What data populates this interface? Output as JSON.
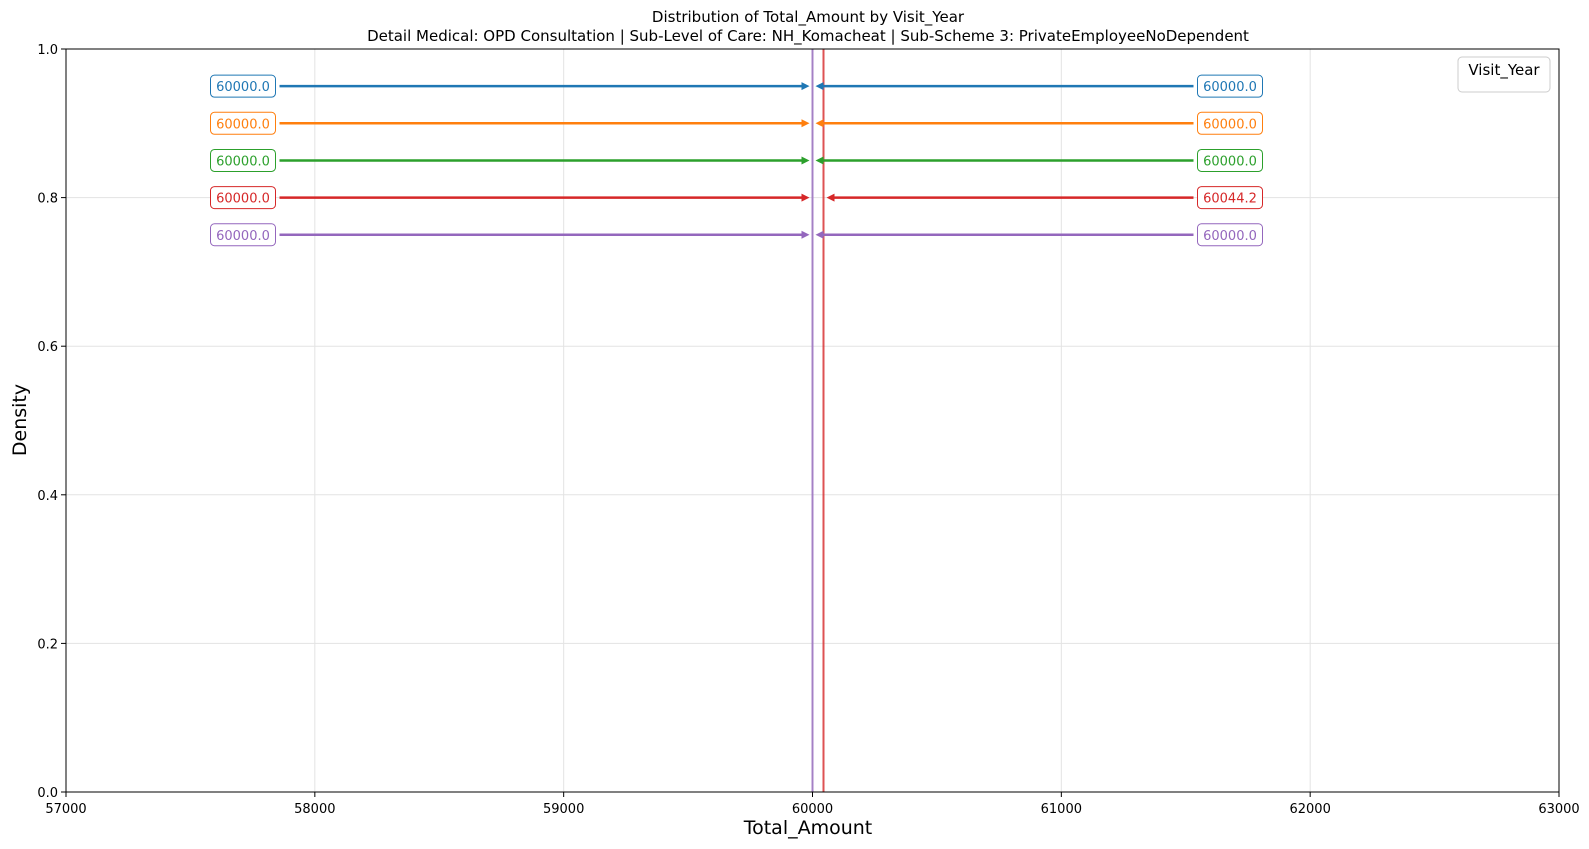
{
  "chart_data": {
    "type": "line",
    "title": "Distribution of Total_Amount by Visit_Year",
    "subtitle": "Detail Medical: OPD Consultation | Sub-Level of Care: NH_Komacheat | Sub-Scheme 3: PrivateEmployeeNoDependent",
    "xlabel": "Total_Amount",
    "ylabel": "Density",
    "xlim": [
      57000,
      63000
    ],
    "ylim": [
      0,
      1.0
    ],
    "xticks": [
      "57000",
      "58000",
      "59000",
      "60000",
      "61000",
      "62000",
      "63000"
    ],
    "yticks": [
      "0.0",
      "0.2",
      "0.4",
      "0.6",
      "0.8",
      "1.0"
    ],
    "grid": true,
    "legend": {
      "title": "Visit_Year",
      "placement": "top-right",
      "entries": []
    },
    "series": [
      {
        "color": "#1f77b4",
        "left_value": 60000.0,
        "right_value": 60000.0,
        "left_label": "60000.0",
        "right_label": "60000.0",
        "annotation_y": 0.95
      },
      {
        "color": "#ff7f0e",
        "left_value": 60000.0,
        "right_value": 60000.0,
        "left_label": "60000.0",
        "right_label": "60000.0",
        "annotation_y": 0.9
      },
      {
        "color": "#2ca02c",
        "left_value": 60000.0,
        "right_value": 60000.0,
        "left_label": "60000.0",
        "right_label": "60000.0",
        "annotation_y": 0.85
      },
      {
        "color": "#d62728",
        "left_value": 60000.0,
        "right_value": 60044.2,
        "left_label": "60000.0",
        "right_label": "60044.2",
        "annotation_y": 0.8
      },
      {
        "color": "#9467bd",
        "left_value": 60000.0,
        "right_value": 60000.0,
        "left_label": "60000.0",
        "right_label": "60000.0",
        "annotation_y": 0.75
      }
    ],
    "vertical_lines": [
      {
        "x": 60000.0,
        "color": "#9467bd"
      },
      {
        "x": 60044.2,
        "color": "#d62728"
      }
    ]
  }
}
